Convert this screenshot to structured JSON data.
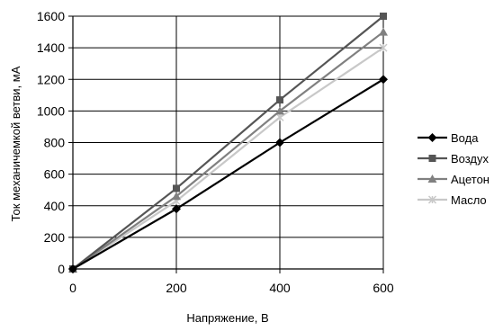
{
  "chart_data": {
    "type": "line",
    "title": "",
    "xlabel": "Напряжение, В",
    "ylabel": "Ток механичемкой ветви, мА",
    "x": [
      0,
      200,
      400,
      600
    ],
    "xlim": [
      0,
      600
    ],
    "ylim": [
      0,
      1600
    ],
    "xticks": [
      "0",
      "200",
      "400",
      "600"
    ],
    "yticks": [
      "0",
      "200",
      "400",
      "600",
      "800",
      "1000",
      "1200",
      "1400",
      "1600"
    ],
    "grid": true,
    "legend_position": "right",
    "series": [
      {
        "name": "Вода",
        "values": [
          0,
          380,
          800,
          1200
        ],
        "color": "#000000",
        "marker": "diamond"
      },
      {
        "name": "Воздух",
        "values": [
          0,
          510,
          1070,
          1600
        ],
        "color": "#555555",
        "marker": "square"
      },
      {
        "name": "Ацетон",
        "values": [
          0,
          460,
          1000,
          1500
        ],
        "color": "#808080",
        "marker": "triangle"
      },
      {
        "name": "Масло",
        "values": [
          0,
          430,
          960,
          1400
        ],
        "color": "#c8c8c8",
        "marker": "cross"
      }
    ]
  }
}
